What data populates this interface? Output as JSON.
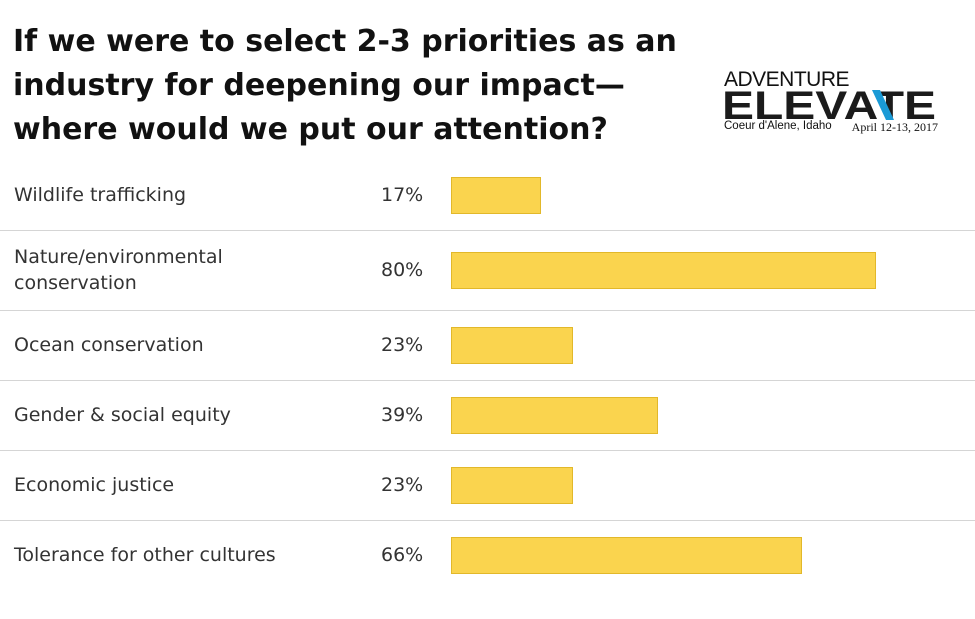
{
  "header": {
    "title": "If we were to select 2-3 priorities as an industry for deepening our impact—where would we put our attention?"
  },
  "logo": {
    "top_text": "ADVENTURE",
    "main_text": "ELEVATE",
    "location": "Coeur d'Alene, Idaho",
    "dates": "April 12-13, 2017",
    "accent_color": "#1a9ad6"
  },
  "colors": {
    "bar_fill": "#fad44e",
    "bar_border": "#e2b82a",
    "divider": "#d5d5d5"
  },
  "chart_data": {
    "type": "bar",
    "orientation": "horizontal",
    "title": "If we were to select 2-3 priorities as an industry for deepening our impact—where would we put our attention?",
    "categories": [
      "Wildlife trafficking",
      "Nature/environmental conservation",
      "Ocean conservation",
      "Gender & social equity",
      "Economic justice",
      "Tolerance for other cultures"
    ],
    "values": [
      17,
      80,
      23,
      39,
      23,
      66
    ],
    "value_labels": [
      "17%",
      "80%",
      "23%",
      "39%",
      "23%",
      "66%"
    ],
    "unit": "%",
    "xlim": [
      0,
      100
    ],
    "grid": false,
    "legend": "none"
  }
}
